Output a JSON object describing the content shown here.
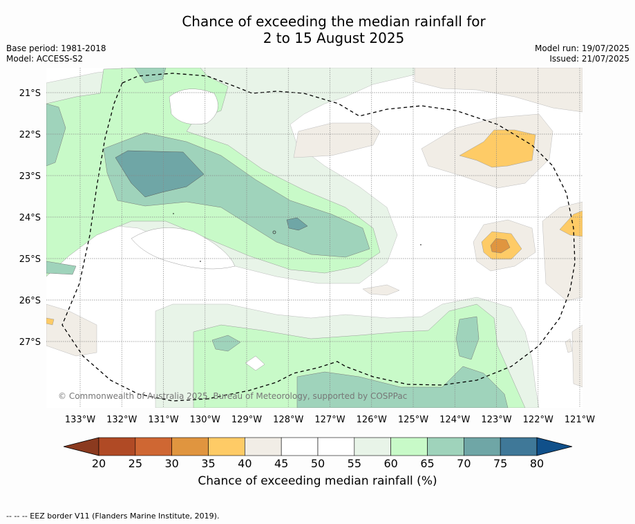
{
  "title": {
    "line1": "Chance of exceeding the median rainfall for",
    "line2": "2 to 15 August 2025"
  },
  "meta": {
    "base_period": "Base period: 1981-2018",
    "model": "Model: ACCESS-S2",
    "model_run": "Model run: 19/07/2025",
    "issued": "Issued: 21/07/2025"
  },
  "map": {
    "latitude_labels": [
      "21°S",
      "22°S",
      "23°S",
      "24°S",
      "25°S",
      "26°S",
      "27°S"
    ],
    "longitude_labels": [
      "133°W",
      "132°W",
      "131°W",
      "130°W",
      "129°W",
      "128°W",
      "127°W",
      "126°W",
      "125°W",
      "124°W",
      "123°W",
      "122°W",
      "121°W"
    ],
    "copyright": "© Commonwealth of Australia 2025, Bureau of Meteorology, supported by COSPPac"
  },
  "colorbar": {
    "ticks": [
      "20",
      "25",
      "30",
      "35",
      "40",
      "45",
      "50",
      "55",
      "60",
      "65",
      "70",
      "75",
      "80"
    ],
    "colors": [
      "#8b3a1f",
      "#b04a25",
      "#cf6733",
      "#e0953f",
      "#fecb66",
      "#f1ede6",
      "#ffffff",
      "#ffffff",
      "#e8f4e8",
      "#c8fac8",
      "#9fd3bb",
      "#6fa6a6",
      "#3f7898",
      "#10508a"
    ],
    "label": "Chance of exceeding median rainfall (%)"
  },
  "footer": {
    "legend": "--  --  -- EEZ border V11 (Flanders Marine Institute, 2019)."
  }
}
